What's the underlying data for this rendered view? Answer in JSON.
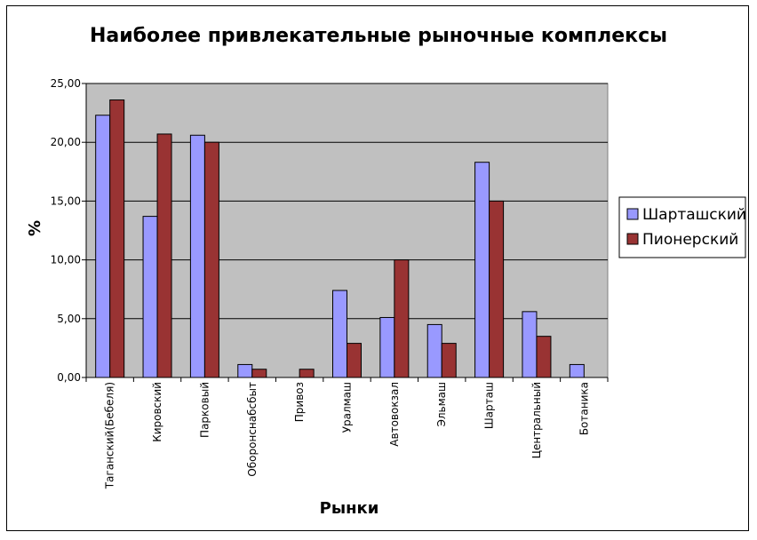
{
  "chart_data": {
    "type": "bar",
    "title": "Наиболее привлекательные рыночные комплексы",
    "xlabel": "Рынки",
    "ylabel": "%",
    "categories": [
      "Таганский(Бебеля)",
      "Кировский",
      "Парковый",
      "Оборонснабсбыт",
      "Привоз",
      "Уралмаш",
      "Автовокзал",
      "Эльмаш",
      "Шарташ",
      "Центральный",
      "Ботаника"
    ],
    "series": [
      {
        "name": "Шарташский",
        "color": "#9999ff",
        "values": [
          22.3,
          13.7,
          20.6,
          1.1,
          0,
          7.4,
          5.1,
          4.5,
          18.3,
          5.6,
          1.1
        ]
      },
      {
        "name": "Пионерский",
        "color": "#993333",
        "values": [
          23.6,
          20.7,
          20.0,
          0.7,
          0.7,
          2.9,
          10.0,
          2.9,
          15.0,
          3.5,
          0
        ]
      }
    ],
    "ylim": [
      0,
      25
    ],
    "yticks": [
      0,
      5,
      10,
      15,
      20,
      25
    ],
    "ytick_labels": [
      "0,00",
      "5,00",
      "10,00",
      "15,00",
      "20,00",
      "25,00"
    ],
    "grid": true,
    "plot_background": "#c0c0c0",
    "legend_position": "right"
  }
}
